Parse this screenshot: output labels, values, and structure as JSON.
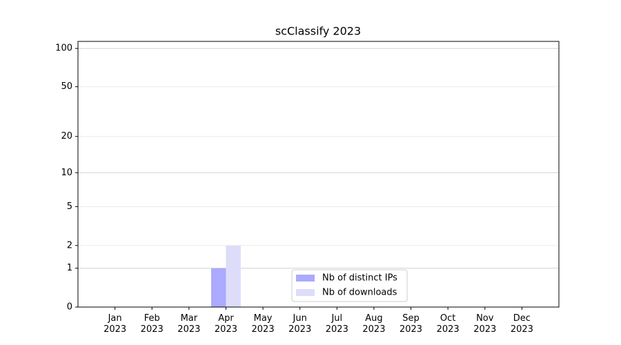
{
  "chart_data": {
    "type": "bar",
    "title": "scClassify 2023",
    "categories": [
      "Jan 2023",
      "Feb 2023",
      "Mar 2023",
      "Apr 2023",
      "May 2023",
      "Jun 2023",
      "Jul 2023",
      "Aug 2023",
      "Sep 2023",
      "Oct 2023",
      "Nov 2023",
      "Dec 2023"
    ],
    "series": [
      {
        "name": "Nb of distinct IPs",
        "color": "#aaaaff",
        "values": [
          0,
          0,
          0,
          1,
          0,
          0,
          0,
          0,
          0,
          0,
          0,
          0
        ]
      },
      {
        "name": "Nb of downloads",
        "color": "#ddddfa",
        "values": [
          0,
          0,
          0,
          2,
          0,
          0,
          0,
          0,
          0,
          0,
          0,
          0
        ]
      }
    ],
    "yscale": "log1p",
    "ylim": [
      0,
      113.5
    ],
    "yticks": [
      0,
      1,
      2,
      5,
      10,
      20,
      50,
      100
    ],
    "grid": true,
    "legend": "lower center"
  }
}
